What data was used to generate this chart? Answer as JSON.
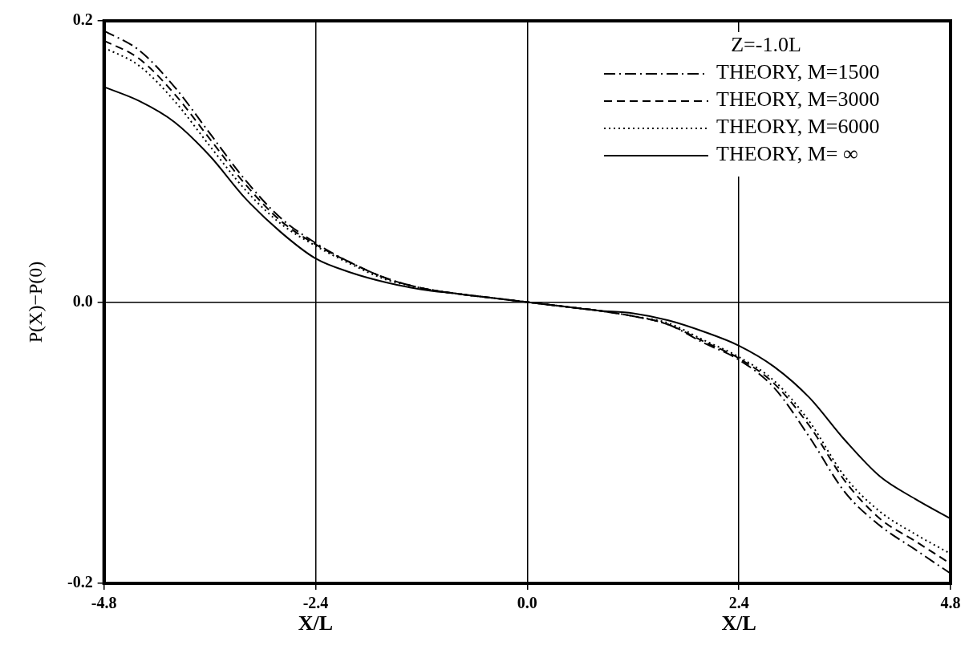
{
  "chart_data": {
    "type": "line",
    "xlabel": "X/L",
    "ylabel": "P(X)−P(0)",
    "legend_title": "Z=-1.0L",
    "legend": "top right",
    "grid": true,
    "marker": "none",
    "annotations": [
      "X/L"
    ],
    "x": [
      -4.8,
      -4.4,
      -4.0,
      -3.6,
      -3.2,
      -2.8,
      -2.4,
      -2.0,
      -1.6,
      -1.2,
      -0.8,
      -0.4,
      0,
      0.4,
      0.8,
      1.2,
      1.6,
      2.0,
      2.4,
      2.8,
      3.2,
      3.6,
      4.0,
      4.4,
      4.8
    ],
    "xlim": [
      -4.8,
      4.8
    ],
    "xticks": [
      -4.8,
      -2.4,
      {
        "value": 0,
        "label": "0.0"
      },
      2.4,
      4.8
    ],
    "ylim": [
      -0.2,
      0.2
    ],
    "yticks": [
      -0.2,
      {
        "value": 0,
        "label": "0.0"
      },
      0.2
    ],
    "series": [
      {
        "name": "THEORY, M=1500",
        "color": "#000000",
        "line_style": "dashdot",
        "values": [
          0.193,
          0.179,
          0.153,
          0.12,
          0.087,
          0.06,
          0.042,
          0.028,
          0.017,
          0.01,
          0.006,
          0.003,
          0,
          -0.003,
          -0.006,
          -0.01,
          -0.016,
          -0.029,
          -0.041,
          -0.061,
          -0.096,
          -0.135,
          -0.159,
          -0.176,
          -0.193
        ]
      },
      {
        "name": "THEORY, M=3000",
        "color": "#000000",
        "line_style": "dashed",
        "values": [
          0.186,
          0.173,
          0.148,
          0.116,
          0.084,
          0.058,
          0.041,
          0.028,
          0.017,
          0.01,
          0.006,
          0.003,
          0,
          -0.003,
          -0.006,
          -0.01,
          -0.016,
          -0.028,
          -0.04,
          -0.058,
          -0.088,
          -0.127,
          -0.154,
          -0.17,
          -0.186
        ]
      },
      {
        "name": "THEORY, M=6000",
        "color": "#000000",
        "line_style": "dotted",
        "values": [
          0.181,
          0.168,
          0.143,
          0.111,
          0.08,
          0.056,
          0.04,
          0.027,
          0.016,
          0.01,
          0.006,
          0.003,
          0,
          -0.003,
          -0.006,
          -0.01,
          -0.015,
          -0.027,
          -0.039,
          -0.056,
          -0.085,
          -0.124,
          -0.149,
          -0.165,
          -0.179
        ]
      },
      {
        "name": "THEORY, M= ∞",
        "color": "#000000",
        "line_style": "solid",
        "values": [
          0.153,
          0.143,
          0.128,
          0.104,
          0.074,
          0.05,
          0.031,
          0.021,
          0.014,
          0.009,
          0.006,
          0.003,
          0,
          -0.003,
          -0.006,
          -0.008,
          -0.013,
          -0.021,
          -0.031,
          -0.046,
          -0.068,
          -0.098,
          -0.124,
          -0.14,
          -0.154
        ]
      }
    ]
  }
}
